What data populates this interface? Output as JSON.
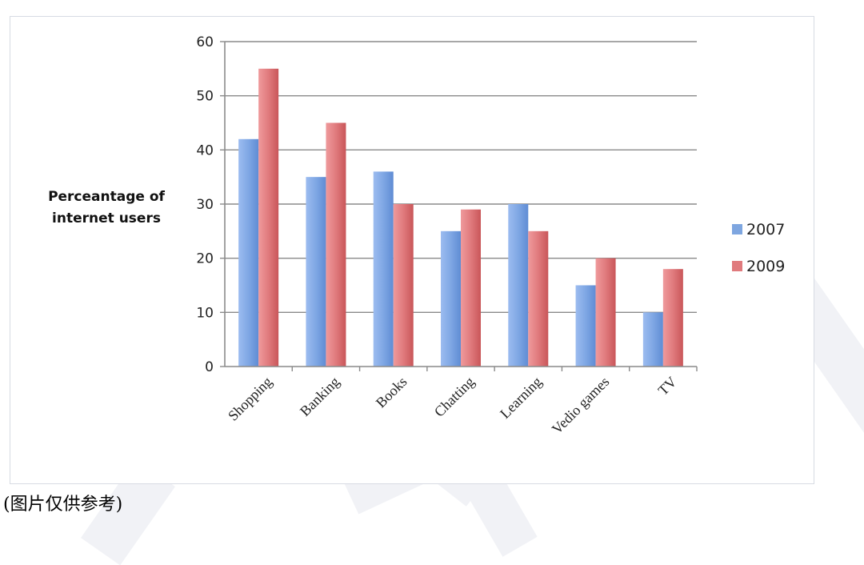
{
  "chart_data": {
    "type": "bar",
    "categories": [
      "Shopping",
      "Banking",
      "Books",
      "Chatting",
      "Learning",
      "Vedio games",
      "TV"
    ],
    "series": [
      {
        "name": "2007",
        "values": [
          42,
          35,
          36,
          25,
          30,
          15,
          10
        ],
        "color": "#7ea6e0"
      },
      {
        "name": "2009",
        "values": [
          55,
          45,
          30,
          29,
          25,
          20,
          18
        ],
        "color": "#e07a7d"
      }
    ],
    "ylabel_lines": [
      "Perceantage of",
      "internet users"
    ],
    "yticks": [
      0,
      10,
      20,
      30,
      40,
      50,
      60
    ],
    "ylim": [
      0,
      60
    ],
    "grid": true,
    "legend": "right"
  },
  "caption": "(图片仅供参考)"
}
